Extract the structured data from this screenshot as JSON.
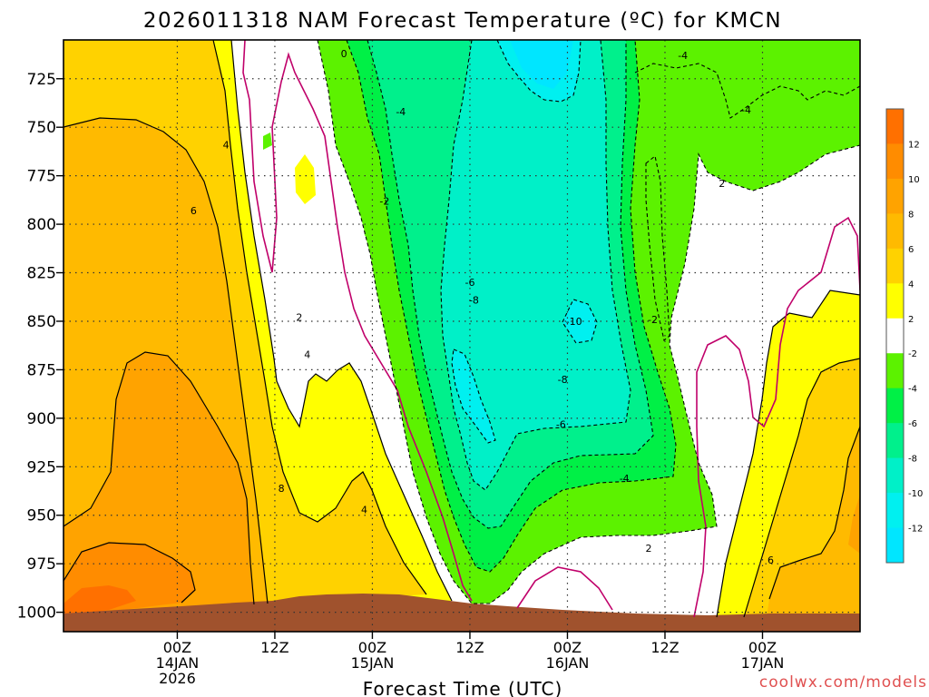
{
  "chart_data": {
    "type": "contour",
    "title": "2026011318 NAM Forecast Temperature (ºC) for KMCN",
    "xlabel": "Forecast Time (UTC)",
    "ylabel": "",
    "credit": "coolwx.com/models",
    "y_axis": {
      "reversed": true,
      "range": [
        1010,
        705
      ],
      "ticks": [
        725,
        750,
        775,
        800,
        825,
        850,
        875,
        900,
        925,
        950,
        975,
        1000
      ]
    },
    "x_axis": {
      "range_hours": [
        -14,
        84
      ],
      "ticks": [
        {
          "hour": 0,
          "lines": [
            "00Z",
            "14JAN",
            "2026"
          ]
        },
        {
          "hour": 12,
          "lines": [
            "12Z"
          ]
        },
        {
          "hour": 24,
          "lines": [
            "00Z",
            "15JAN"
          ]
        },
        {
          "hour": 36,
          "lines": [
            "12Z"
          ]
        },
        {
          "hour": 48,
          "lines": [
            "00Z",
            "16JAN"
          ]
        },
        {
          "hour": 60,
          "lines": [
            "12Z"
          ]
        },
        {
          "hour": 72,
          "lines": [
            "00Z",
            "17JAN"
          ]
        }
      ]
    },
    "grid": true,
    "colorbar": {
      "position": "right",
      "bins": [
        {
          "from": 12,
          "to": 14,
          "color": "#ff7000"
        },
        {
          "from": 10,
          "to": 12,
          "color": "#ff8c00"
        },
        {
          "from": 8,
          "to": 10,
          "color": "#ffa300"
        },
        {
          "from": 6,
          "to": 8,
          "color": "#ffba00"
        },
        {
          "from": 4,
          "to": 6,
          "color": "#ffd200"
        },
        {
          "from": 2,
          "to": 4,
          "color": "#ffff00"
        },
        {
          "from": -2,
          "to": 2,
          "color": "#ffffff"
        },
        {
          "from": -4,
          "to": -2,
          "color": "#5cf200"
        },
        {
          "from": -6,
          "to": -4,
          "color": "#00f046"
        },
        {
          "from": -8,
          "to": -6,
          "color": "#00f08c"
        },
        {
          "from": -10,
          "to": -8,
          "color": "#00f0c8"
        },
        {
          "from": -12,
          "to": -10,
          "color": "#00f0f0"
        },
        {
          "from": -14,
          "to": -12,
          "color": "#00e6ff"
        }
      ],
      "labels": [
        "12",
        "10",
        "8",
        "6",
        "4",
        "2",
        "-2",
        "-4",
        "-6",
        "-8",
        "-10",
        "-12"
      ]
    },
    "contour_labels": [
      {
        "text": "0",
        "hour": 20.5,
        "p": 712
      },
      {
        "text": "-4",
        "hour": 27.5,
        "p": 742
      },
      {
        "text": "-2",
        "hour": 25.5,
        "p": 788
      },
      {
        "text": "4",
        "hour": 6,
        "p": 759
      },
      {
        "text": "6",
        "hour": 2,
        "p": 793
      },
      {
        "text": "2",
        "hour": 15,
        "p": 848
      },
      {
        "text": "4",
        "hour": 16,
        "p": 867
      },
      {
        "text": "8",
        "hour": 12.8,
        "p": 936
      },
      {
        "text": "4",
        "hour": 23,
        "p": 947
      },
      {
        "text": "-6",
        "hour": 36,
        "p": 830
      },
      {
        "text": "-8",
        "hour": 36.5,
        "p": 839
      },
      {
        "text": "-10",
        "hour": 48.8,
        "p": 850
      },
      {
        "text": "-8",
        "hour": 47.4,
        "p": 880
      },
      {
        "text": "-6",
        "hour": 47.2,
        "p": 903
      },
      {
        "text": "-4",
        "hour": 55,
        "p": 931
      },
      {
        "text": "2",
        "hour": 58,
        "p": 967
      },
      {
        "text": "-2",
        "hour": 58.5,
        "p": 849
      },
      {
        "text": "-4",
        "hour": 62.2,
        "p": 713
      },
      {
        "text": "-4",
        "hour": 70,
        "p": 741
      },
      {
        "text": "2",
        "hour": 67,
        "p": 779
      },
      {
        "text": "6",
        "hour": 73,
        "p": 973
      }
    ]
  }
}
